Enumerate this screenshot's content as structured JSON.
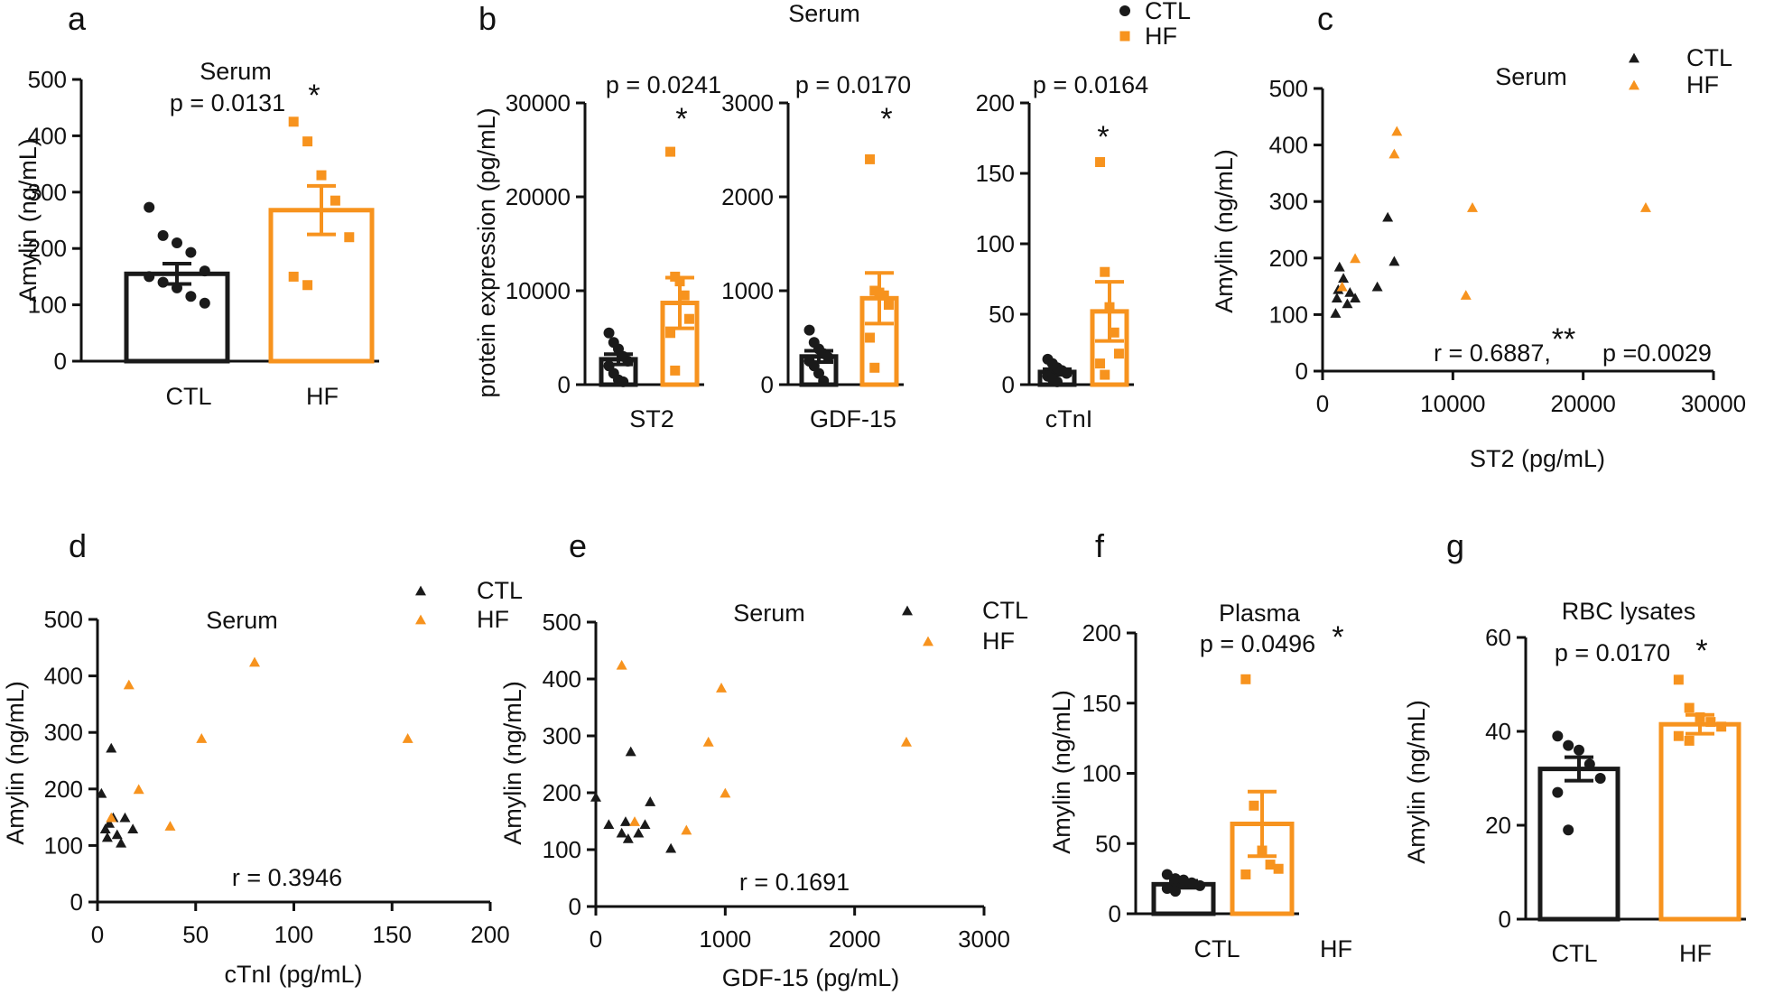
{
  "colors": {
    "ctl": "#1a1a1a",
    "hf": "#f7931e"
  },
  "panels": [
    {
      "letter": "a",
      "kind": "bar",
      "title": "Serum",
      "p_text": "p = 0.0131",
      "star": "*",
      "ylabel": "Amylin (ng/mL)",
      "ylim": [
        0,
        500
      ],
      "yticks": [
        "0",
        "100",
        "200",
        "300",
        "400",
        "500"
      ],
      "groups": [
        {
          "name": "CTL",
          "mean": 155,
          "sem": 18,
          "points": [
            273,
            223,
            210,
            193,
            160,
            150,
            140,
            130,
            115,
            103
          ]
        },
        {
          "name": "HF",
          "mean": 268,
          "sem": 43,
          "points": [
            425,
            390,
            330,
            285,
            220,
            150,
            135
          ]
        }
      ]
    },
    {
      "letter": "b",
      "kind": "bar",
      "title": "Serum",
      "p_text": "p = 0.0241",
      "star": "*",
      "ylabel": "protein expression (pg/mL)",
      "category": "ST2",
      "ylim": [
        0,
        30000
      ],
      "yticks": [
        "0",
        "10000",
        "20000",
        "30000"
      ],
      "groups": [
        {
          "name": "CTL",
          "mean": 2700,
          "sem": 550,
          "points": [
            5500,
            4500,
            3800,
            3000,
            2500,
            2000,
            1200,
            500,
            300
          ]
        },
        {
          "name": "HF",
          "mean": 8700,
          "sem": 2700,
          "points": [
            24800,
            11500,
            11000,
            9500,
            7000,
            5500,
            1500
          ]
        }
      ]
    },
    {
      "letter": "",
      "kind": "bar",
      "p_text": "p = 0.0170",
      "star": "*",
      "category": "GDF-15",
      "ylim": [
        0,
        3000
      ],
      "yticks": [
        "0",
        "1000",
        "2000",
        "3000"
      ],
      "groups": [
        {
          "name": "CTL",
          "mean": 300,
          "sem": 60,
          "points": [
            580,
            450,
            380,
            330,
            290,
            250,
            200,
            120,
            40
          ]
        },
        {
          "name": "HF",
          "mean": 920,
          "sem": 270,
          "points": [
            2400,
            1000,
            980,
            950,
            850,
            500,
            180
          ]
        }
      ]
    },
    {
      "letter": "",
      "kind": "bar",
      "p_text": "p = 0.0164",
      "star": "*",
      "category": "cTnI",
      "ylim": [
        0,
        200
      ],
      "yticks": [
        "0",
        "50",
        "100",
        "150",
        "200"
      ],
      "groups": [
        {
          "name": "CTL",
          "mean": 9,
          "sem": 2,
          "points": [
            18,
            15,
            12,
            10,
            8,
            6,
            4,
            2
          ]
        },
        {
          "name": "HF",
          "mean": 52,
          "sem": 21,
          "points": [
            158,
            80,
            55,
            37,
            22,
            15,
            7
          ]
        }
      ],
      "legend": {
        "ctl": "CTL",
        "hf": "HF"
      }
    },
    {
      "letter": "c",
      "kind": "scatter",
      "title": "Serum",
      "r_text": "r = 0.6887,",
      "stars": "**",
      "p_text": "p =0.0029",
      "xlabel": "ST2 (pg/mL)",
      "ylabel": "Amylin (ng/mL)",
      "xlim": [
        0,
        30000
      ],
      "ylim": [
        0,
        500
      ],
      "xticks": [
        "0",
        "10000",
        "20000",
        "30000"
      ],
      "yticks": [
        "0",
        "100",
        "200",
        "300",
        "400",
        "500"
      ],
      "legend": {
        "ctl": "CTL",
        "hf": "HF"
      },
      "ctl_points": [
        [
          1000,
          103
        ],
        [
          1100,
          130
        ],
        [
          1200,
          145
        ],
        [
          1300,
          185
        ],
        [
          1600,
          165
        ],
        [
          1900,
          120
        ],
        [
          2100,
          140
        ],
        [
          2500,
          130
        ],
        [
          4200,
          150
        ],
        [
          5000,
          273
        ],
        [
          5500,
          195
        ]
      ],
      "hf_points": [
        [
          1500,
          150
        ],
        [
          2500,
          200
        ],
        [
          5500,
          385
        ],
        [
          5700,
          425
        ],
        [
          11000,
          135
        ],
        [
          11500,
          290
        ],
        [
          24800,
          290
        ]
      ]
    },
    {
      "letter": "d",
      "kind": "scatter",
      "title": "Serum",
      "r_text": "r = 0.3946",
      "xlabel": "cTnI (pg/mL)",
      "ylabel": "Amylin (ng/mL)",
      "xlim": [
        0,
        200
      ],
      "ylim": [
        0,
        500
      ],
      "xticks": [
        "0",
        "50",
        "100",
        "150",
        "200"
      ],
      "yticks": [
        "0",
        "100",
        "200",
        "300",
        "400",
        "500"
      ],
      "legend": {
        "ctl": "CTL",
        "hf": "HF"
      },
      "ctl_points": [
        [
          2,
          193
        ],
        [
          4,
          130
        ],
        [
          5,
          115
        ],
        [
          6,
          140
        ],
        [
          7,
          273
        ],
        [
          8,
          150
        ],
        [
          10,
          120
        ],
        [
          12,
          105
        ],
        [
          14,
          150
        ],
        [
          18,
          130
        ]
      ],
      "hf_points": [
        [
          7,
          150
        ],
        [
          16,
          385
        ],
        [
          21,
          200
        ],
        [
          37,
          135
        ],
        [
          53,
          290
        ],
        [
          80,
          425
        ],
        [
          158,
          290
        ]
      ]
    },
    {
      "letter": "e",
      "kind": "scatter",
      "title": "Serum",
      "r_text": "r = 0.1691",
      "xlabel": "GDF-15 (pg/mL)",
      "ylabel": "Amylin (ng/mL)",
      "xlim": [
        0,
        3000
      ],
      "ylim": [
        0,
        500
      ],
      "xticks": [
        "0",
        "1000",
        "2000",
        "3000"
      ],
      "yticks": [
        "0",
        "100",
        "200",
        "300",
        "400",
        "500"
      ],
      "legend": {
        "ctl": "CTL",
        "hf": "HF"
      },
      "ctl_points": [
        [
          0,
          193
        ],
        [
          100,
          145
        ],
        [
          200,
          130
        ],
        [
          230,
          150
        ],
        [
          250,
          120
        ],
        [
          270,
          273
        ],
        [
          330,
          130
        ],
        [
          380,
          145
        ],
        [
          420,
          185
        ],
        [
          580,
          103
        ]
      ],
      "hf_points": [
        [
          200,
          425
        ],
        [
          300,
          150
        ],
        [
          700,
          135
        ],
        [
          870,
          290
        ],
        [
          970,
          385
        ],
        [
          1000,
          200
        ],
        [
          2400,
          290
        ]
      ]
    },
    {
      "letter": "f",
      "kind": "bar",
      "title": "Plasma",
      "p_text": "p = 0.0496",
      "star": "*",
      "ylabel": "Amylin (ng/mL)",
      "ylim": [
        0,
        200
      ],
      "yticks": [
        "0",
        "50",
        "100",
        "150",
        "200"
      ],
      "groups": [
        {
          "name": "CTL",
          "mean": 21,
          "sem": 2.5,
          "points": [
            28,
            25,
            24,
            22,
            20,
            18,
            16
          ]
        },
        {
          "name": "HF",
          "mean": 64,
          "sem": 23,
          "points": [
            167,
            77,
            45,
            35,
            32,
            28
          ]
        }
      ]
    },
    {
      "letter": "g",
      "kind": "bar",
      "title": "RBC lysates",
      "p_text": "p = 0.0170",
      "star": "*",
      "ylabel": "Amylin (ng/mL)",
      "ylim": [
        0,
        60
      ],
      "yticks": [
        "0",
        "20",
        "40",
        "60"
      ],
      "groups": [
        {
          "name": "CTL",
          "mean": 32,
          "sem": 2.5,
          "points": [
            39,
            37,
            36,
            33,
            30,
            27,
            19
          ]
        },
        {
          "name": "HF",
          "mean": 41.5,
          "sem": 2,
          "points": [
            51,
            45,
            43,
            42,
            41,
            39,
            38
          ]
        }
      ]
    }
  ],
  "chart_data": [
    {
      "type": "bar",
      "panel": "a",
      "title": "Serum",
      "categories": [
        "CTL",
        "HF"
      ],
      "values": [
        155,
        268
      ],
      "sem": [
        18,
        43
      ],
      "ylabel": "Amylin (ng/mL)",
      "ylim": [
        0,
        500
      ],
      "annotation": "p = 0.0131 *"
    },
    {
      "type": "bar",
      "panel": "b",
      "title": "Serum",
      "category": "ST2",
      "series": [
        {
          "name": "CTL",
          "values": [
            2700
          ]
        },
        {
          "name": "HF",
          "values": [
            8700
          ]
        }
      ],
      "ylabel": "protein expression (pg/mL)",
      "ylim": [
        0,
        30000
      ],
      "annotation": "p = 0.0241 *"
    },
    {
      "type": "bar",
      "panel": "b",
      "category": "GDF-15",
      "series": [
        {
          "name": "CTL",
          "values": [
            300
          ]
        },
        {
          "name": "HF",
          "values": [
            920
          ]
        }
      ],
      "ylim": [
        0,
        3000
      ],
      "annotation": "p = 0.0170 *"
    },
    {
      "type": "bar",
      "panel": "b",
      "category": "cTnI",
      "series": [
        {
          "name": "CTL",
          "values": [
            9
          ]
        },
        {
          "name": "HF",
          "values": [
            52
          ]
        }
      ],
      "ylim": [
        0,
        200
      ],
      "annotation": "p = 0.0164 *"
    },
    {
      "type": "scatter",
      "panel": "c",
      "title": "Serum",
      "xlabel": "ST2 (pg/mL)",
      "ylabel": "Amylin (ng/mL)",
      "xlim": [
        0,
        30000
      ],
      "ylim": [
        0,
        500
      ],
      "annotation": "r = 0.6887, ** p =0.0029"
    },
    {
      "type": "scatter",
      "panel": "d",
      "title": "Serum",
      "xlabel": "cTnI (pg/mL)",
      "ylabel": "Amylin (ng/mL)",
      "xlim": [
        0,
        200
      ],
      "ylim": [
        0,
        500
      ],
      "annotation": "r = 0.3946"
    },
    {
      "type": "scatter",
      "panel": "e",
      "title": "Serum",
      "xlabel": "GDF-15 (pg/mL)",
      "ylabel": "Amylin (ng/mL)",
      "xlim": [
        0,
        3000
      ],
      "ylim": [
        0,
        500
      ],
      "annotation": "r = 0.1691"
    },
    {
      "type": "bar",
      "panel": "f",
      "title": "Plasma",
      "categories": [
        "CTL",
        "HF"
      ],
      "values": [
        21,
        64
      ],
      "sem": [
        2.5,
        23
      ],
      "ylabel": "Amylin (ng/mL)",
      "ylim": [
        0,
        200
      ],
      "annotation": "p = 0.0496 *"
    },
    {
      "type": "bar",
      "panel": "g",
      "title": "RBC lysates",
      "categories": [
        "CTL",
        "HF"
      ],
      "values": [
        32,
        41.5
      ],
      "sem": [
        2.5,
        2
      ],
      "ylabel": "Amylin (ng/mL)",
      "ylim": [
        0,
        60
      ],
      "annotation": "p = 0.0170 *"
    }
  ]
}
